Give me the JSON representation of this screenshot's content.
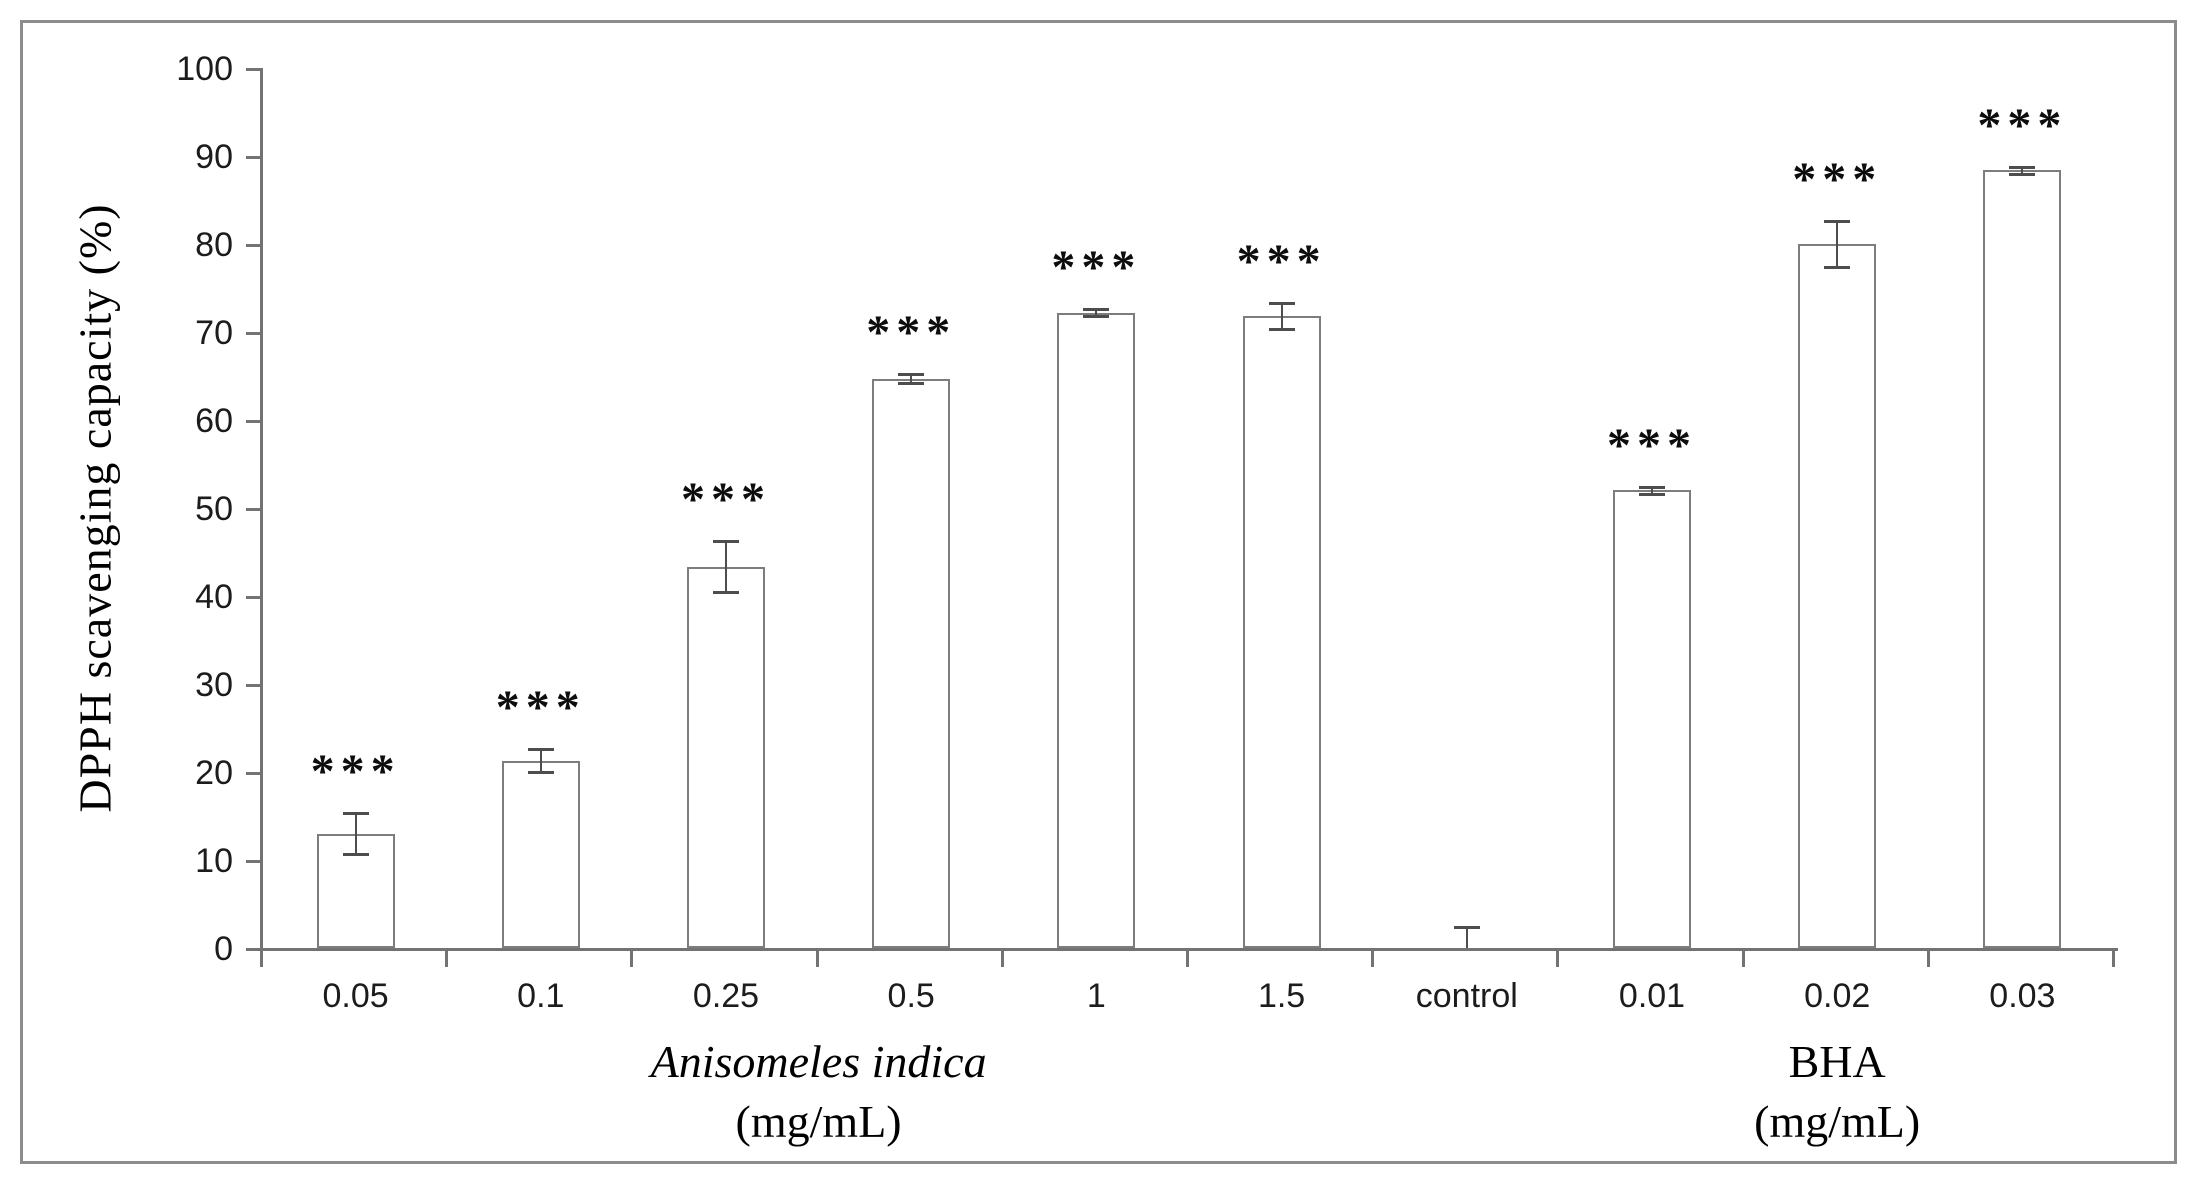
{
  "figure": {
    "border_color": "#8c8c8c",
    "background_color": "#ffffff"
  },
  "chart_data": {
    "type": "bar",
    "title": "",
    "ylabel": "DPPH scavenging capacity (%)",
    "ylim": [
      0,
      100
    ],
    "y_ticks": [
      0,
      10,
      20,
      30,
      40,
      50,
      60,
      70,
      80,
      90,
      100
    ],
    "grid": false,
    "legend": "none",
    "categories": [
      "0.05",
      "0.1",
      "0.25",
      "0.5",
      "1",
      "1.5",
      "control",
      "0.01",
      "0.02",
      "0.03"
    ],
    "values": [
      13.0,
      21.3,
      43.3,
      64.7,
      72.2,
      71.8,
      0,
      52.0,
      80.0,
      88.4
    ],
    "errors": [
      2.3,
      1.3,
      2.9,
      0.5,
      0.4,
      1.5,
      2.4,
      0.4,
      2.6,
      0.4
    ],
    "significance": [
      "***",
      "***",
      "***",
      "***",
      "***",
      "***",
      "",
      "***",
      "***",
      "***"
    ],
    "groups": [
      {
        "label": "Anisomeles indica",
        "unit": "(mg/mL)",
        "italic": true,
        "span": [
          0,
          5
        ]
      },
      {
        "label": "BHA",
        "unit": "(mg/mL)",
        "italic": false,
        "span": [
          7,
          9
        ]
      }
    ],
    "colors": {
      "bar_fill": "#ffffff",
      "bar_stroke": "#7d7d7d",
      "axis": "#737373",
      "error_bar": "#4d4d4d",
      "tick_text": "#1c1c1c",
      "label_text": "#000000",
      "significance_text": "#0d0d0d"
    }
  }
}
